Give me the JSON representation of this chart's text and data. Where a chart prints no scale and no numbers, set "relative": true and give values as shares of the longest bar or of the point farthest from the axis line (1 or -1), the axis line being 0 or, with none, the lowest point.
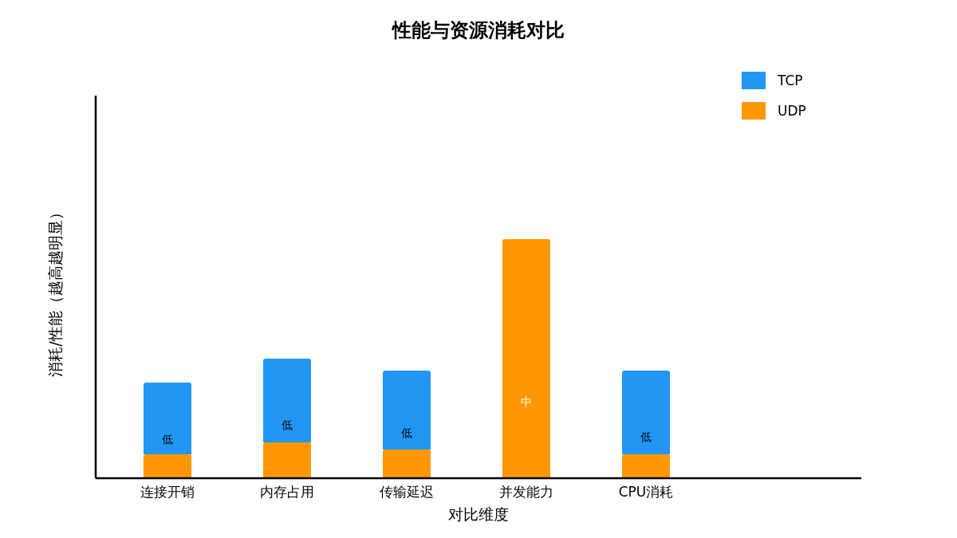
{
  "chart_data": {
    "type": "bar",
    "title": "性能与资源消耗对比",
    "xlabel": "对比维度",
    "ylabel": "消耗/性能（越高越明显）",
    "relative": true,
    "stacked": true,
    "legend": "top right",
    "categories": [
      "连接开销",
      "内存占用",
      "传输延迟",
      "并发能力",
      "CPU消耗"
    ],
    "series": [
      {
        "name": "UDP",
        "color": "#ff9800",
        "values": [
          0.1,
          0.15,
          0.12,
          1,
          0.1
        ]
      },
      {
        "name": "TCP",
        "color": "#2196f3",
        "values": [
          0.3,
          0.35,
          0.33,
          null,
          0.35
        ]
      }
    ],
    "annotations": [
      "低",
      "低",
      "低",
      "中",
      "低"
    ]
  }
}
